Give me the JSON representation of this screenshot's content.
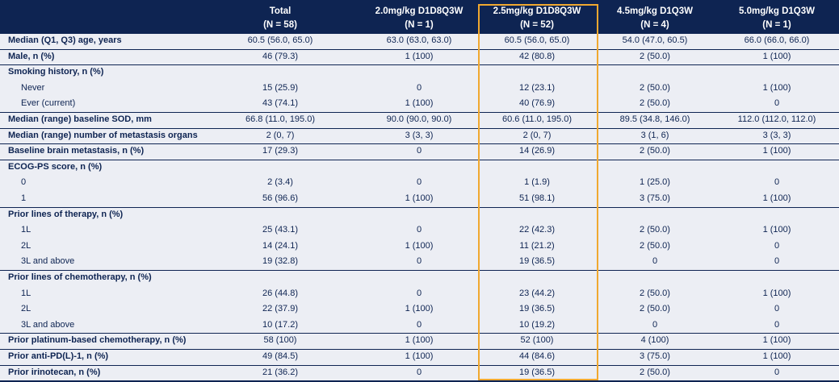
{
  "header": {
    "columns": [
      {
        "label": "Total",
        "n": "(N = 58)"
      },
      {
        "label": "2.0mg/kg D1D8Q3W",
        "n": "(N = 1)"
      },
      {
        "label": "2.5mg/kg D1D8Q3W",
        "n": "(N = 52)"
      },
      {
        "label": "4.5mg/kg D1Q3W",
        "n": "(N = 4)"
      },
      {
        "label": "5.0mg/kg D1Q3W",
        "n": "(N = 1)"
      }
    ]
  },
  "groups": [
    {
      "label": "Median (Q1, Q3) age, years",
      "values": [
        "60.5 (56.0, 65.0)",
        "63.0 (63.0, 63.0)",
        "60.5 (56.0, 65.0)",
        "54.0 (47.0, 60.5)",
        "66.0 (66.0, 66.0)"
      ]
    },
    {
      "label": "Male, n (%)",
      "values": [
        "46 (79.3)",
        "1 (100)",
        "42 (80.8)",
        "2 (50.0)",
        "1 (100)"
      ]
    },
    {
      "label": "Smoking history, n (%)",
      "items": [
        {
          "label": "Never",
          "values": [
            "15 (25.9)",
            "0",
            "12 (23.1)",
            "2 (50.0)",
            "1 (100)"
          ]
        },
        {
          "label": "Ever (current)",
          "values": [
            "43 (74.1)",
            "1 (100)",
            "40 (76.9)",
            "2 (50.0)",
            "0"
          ]
        }
      ]
    },
    {
      "label": "Median (range) baseline SOD, mm",
      "values": [
        "66.8 (11.0, 195.0)",
        "90.0 (90.0, 90.0)",
        "60.6 (11.0, 195.0)",
        "89.5 (34.8, 146.0)",
        "112.0 (112.0, 112.0)"
      ]
    },
    {
      "label": "Median (range) number of metastasis organs",
      "values": [
        "2 (0, 7)",
        "3 (3, 3)",
        "2 (0, 7)",
        "3 (1, 6)",
        "3 (3, 3)"
      ]
    },
    {
      "label": "Baseline brain metastasis, n (%)",
      "values": [
        "17 (29.3)",
        "0",
        "14 (26.9)",
        "2 (50.0)",
        "1 (100)"
      ]
    },
    {
      "label": "ECOG-PS score, n (%)",
      "items": [
        {
          "label": "0",
          "values": [
            "2 (3.4)",
            "0",
            "1 (1.9)",
            "1 (25.0)",
            "0"
          ]
        },
        {
          "label": "1",
          "values": [
            "56 (96.6)",
            "1 (100)",
            "51 (98.1)",
            "3 (75.0)",
            "1 (100)"
          ]
        }
      ]
    },
    {
      "label": "Prior lines of therapy, n (%)",
      "items": [
        {
          "label": "1L",
          "values": [
            "25 (43.1)",
            "0",
            "22 (42.3)",
            "2 (50.0)",
            "1 (100)"
          ]
        },
        {
          "label": "2L",
          "values": [
            "14 (24.1)",
            "1 (100)",
            "11 (21.2)",
            "2 (50.0)",
            "0"
          ]
        },
        {
          "label": "3L and above",
          "values": [
            "19 (32.8)",
            "0",
            "19 (36.5)",
            "0",
            "0"
          ]
        }
      ]
    },
    {
      "label": "Prior lines of chemotherapy, n (%)",
      "items": [
        {
          "label": "1L",
          "values": [
            "26 (44.8)",
            "0",
            "23 (44.2)",
            "2 (50.0)",
            "1 (100)"
          ]
        },
        {
          "label": "2L",
          "values": [
            "22 (37.9)",
            "1 (100)",
            "19 (36.5)",
            "2 (50.0)",
            "0"
          ]
        },
        {
          "label": "3L and above",
          "values": [
            "10 (17.2)",
            "0",
            "10 (19.2)",
            "0",
            "0"
          ]
        }
      ]
    },
    {
      "label": "Prior platinum-based chemotherapy, n (%)",
      "values": [
        "58 (100)",
        "1 (100)",
        "52 (100)",
        "4 (100)",
        "1 (100)"
      ]
    },
    {
      "label": "Prior anti-PD(L)-1, n (%)",
      "values": [
        "49 (84.5)",
        "1 (100)",
        "44 (84.6)",
        "3 (75.0)",
        "1 (100)"
      ]
    },
    {
      "label": "Prior irinotecan, n (%)",
      "values": [
        "21 (36.2)",
        "0",
        "19 (36.5)",
        "2 (50.0)",
        "0"
      ]
    }
  ]
}
